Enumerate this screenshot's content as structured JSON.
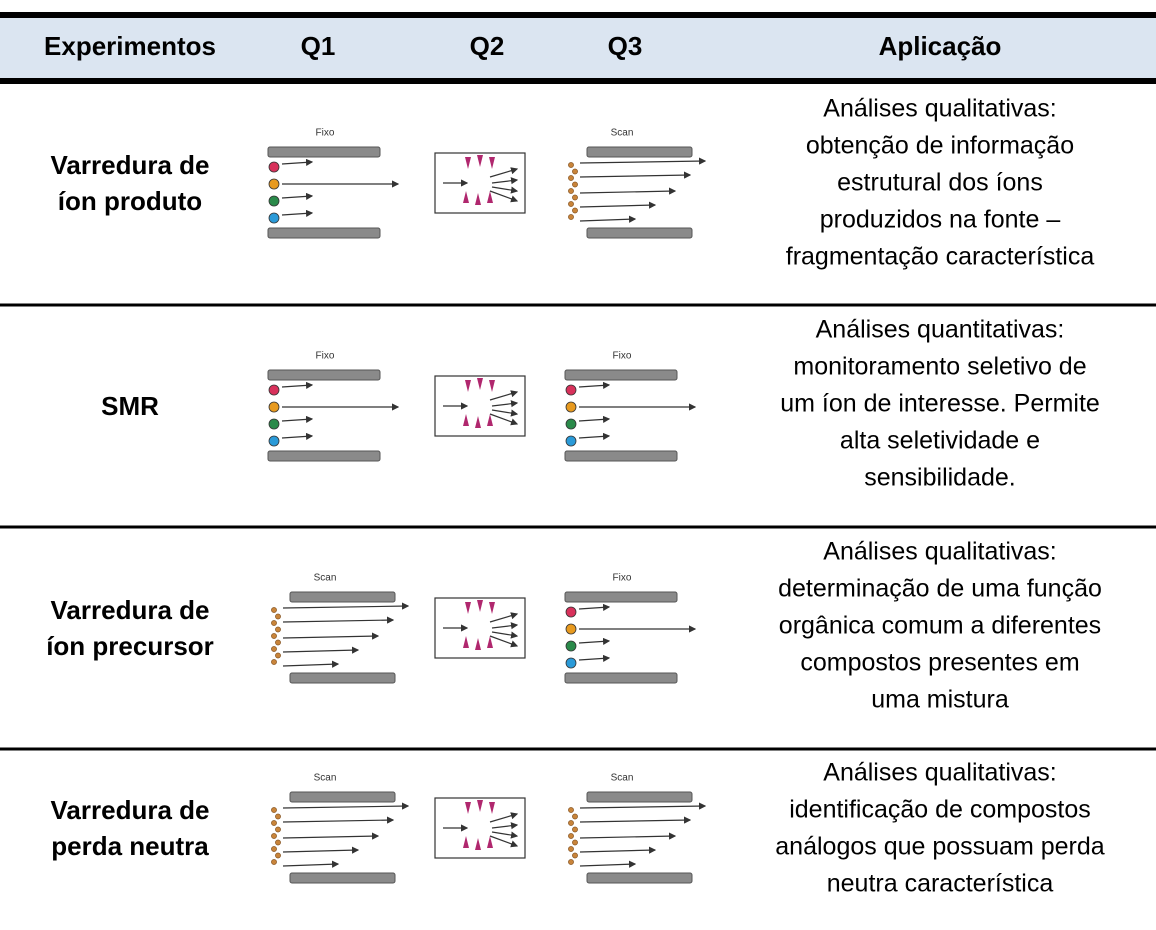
{
  "table": {
    "header": [
      "Experimentos",
      "Q1",
      "Q2",
      "Q3",
      "Aplicação"
    ],
    "rows": [
      {
        "name": [
          "Varredura de",
          "íon produto"
        ],
        "q1": "Fixo",
        "q3": "Scan",
        "application": [
          "Análises qualitativas:",
          "obtenção de informação",
          "estrutural dos íons",
          "produzidos na fonte –",
          "fragmentação característica"
        ]
      },
      {
        "name": [
          "SMR"
        ],
        "q1": "Fixo",
        "q3": "Fixo",
        "application": [
          "Análises quantitativas:",
          "monitoramento seletivo de",
          "um íon de interesse. Permite",
          "alta seletividade e",
          "sensibilidade."
        ]
      },
      {
        "name": [
          "Varredura de",
          "íon precursor"
        ],
        "q1": "Scan",
        "q3": "Fixo",
        "application": [
          "Análises qualitativas:",
          "determinação de uma função",
          "orgânica comum a diferentes",
          "compostos presentes em",
          "uma mistura"
        ]
      },
      {
        "name": [
          "Varredura de",
          "perda neutra"
        ],
        "q1": "Scan",
        "q3": "Scan",
        "application": [
          "Análises qualitativas:",
          "identificação de compostos",
          "análogos que possuam perda",
          "neutra característica"
        ]
      }
    ]
  }
}
